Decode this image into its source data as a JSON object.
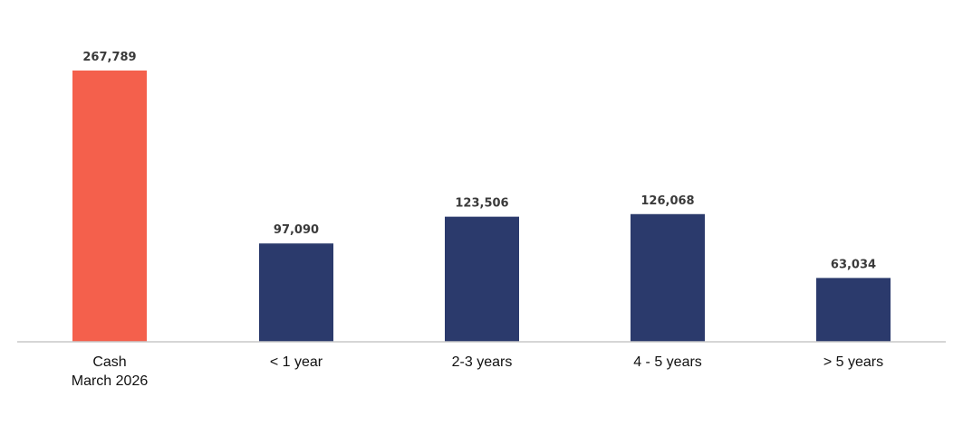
{
  "chart_data": {
    "type": "bar",
    "categories": [
      [
        "Cash",
        "March 2026"
      ],
      [
        "< 1 year"
      ],
      [
        "2-3 years"
      ],
      [
        "4 - 5 years"
      ],
      [
        "> 5 years"
      ]
    ],
    "values": [
      267789,
      97090,
      123506,
      126068,
      63034
    ],
    "value_labels": [
      "267,789",
      "97,090",
      "123,506",
      "126,068",
      "63,034"
    ],
    "bar_colors": [
      "#F4604C",
      "#2B3A6C",
      "#2B3A6C",
      "#2B3A6C",
      "#2B3A6C"
    ],
    "axis_color": "#c8c8c8",
    "ylim": [
      0,
      267789
    ],
    "grid": false,
    "legend": "none",
    "title": "",
    "xlabel": "",
    "ylabel": ""
  }
}
